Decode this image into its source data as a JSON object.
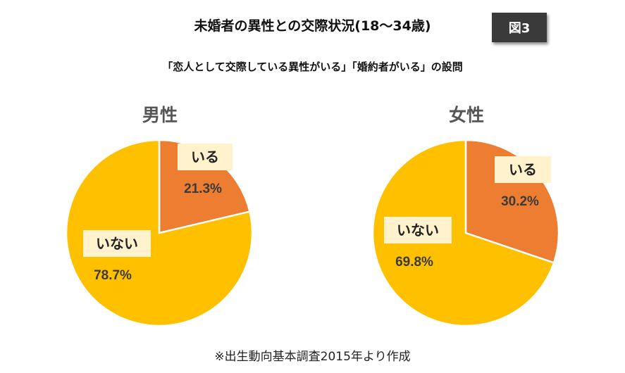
{
  "title": "未婚者の異性との交際状況(18〜34歳)",
  "figure_label": "図3",
  "subtitle": "「恋人として交際している異性がいる」「婚約者がいる」の設問",
  "source_note": "※出生動向基本調査2015年より作成",
  "colors": {
    "iru": "#ED7D31",
    "inai": "#FFC000",
    "label_box": "#FFF2CC",
    "badge": "#3a3a3a"
  },
  "chart_data": [
    {
      "type": "pie",
      "title": "男性",
      "slices": [
        {
          "label": "いる",
          "value": 21.3,
          "value_label": "21.3%",
          "color": "#ED7D31"
        },
        {
          "label": "いない",
          "value": 78.7,
          "value_label": "78.7%",
          "color": "#FFC000"
        }
      ]
    },
    {
      "type": "pie",
      "title": "女性",
      "slices": [
        {
          "label": "いる",
          "value": 30.2,
          "value_label": "30.2%",
          "color": "#ED7D31"
        },
        {
          "label": "いない",
          "value": 69.8,
          "value_label": "69.8%",
          "color": "#FFC000"
        }
      ]
    }
  ]
}
